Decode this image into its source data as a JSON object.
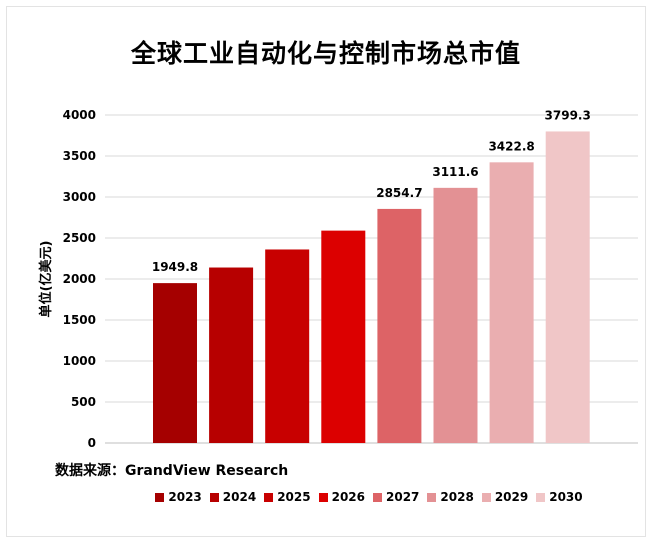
{
  "source_text": "数据来源：GrandView Research",
  "chart_data": {
    "type": "bar",
    "title": "全球工业自动化与控制市场总市值",
    "xlabel": "",
    "ylabel": "单位(亿美元)",
    "ylim": [
      0,
      4000
    ],
    "yticks": [
      0,
      500,
      1000,
      1500,
      2000,
      2500,
      3000,
      3500,
      4000
    ],
    "grid": true,
    "legend_position": "bottom",
    "categories": [
      "2023",
      "2024",
      "2025",
      "2026",
      "2027",
      "2028",
      "2029",
      "2030"
    ],
    "values": [
      1949.8,
      2140,
      2360,
      2590,
      2854.7,
      3111.6,
      3422.8,
      3799.3
    ],
    "data_labels": [
      "1949.8",
      "",
      "",
      "",
      "2854.7",
      "3111.6",
      "3422.8",
      "3799.3"
    ],
    "colors": [
      "#a50000",
      "#b70000",
      "#c80000",
      "#dc0000",
      "#dd6366",
      "#e39194",
      "#eaaeb0",
      "#f0c6c7"
    ]
  }
}
